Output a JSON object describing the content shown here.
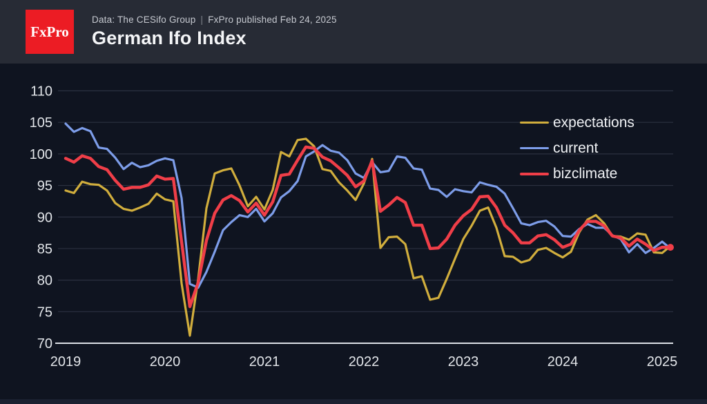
{
  "header": {
    "logo_text": "FxPro",
    "subtitle_left": "Data: The CESifo Group",
    "subtitle_separator": "|",
    "subtitle_right": "FxPro published Feb 24, 2025",
    "title": "German Ifo Index"
  },
  "colors": {
    "background": "#0f1420",
    "header_bg": "#272b35",
    "logo_bg": "#ec1c24",
    "grid": "#2b3140",
    "axis_line": "#dde0e6",
    "tick_text": "#e3e6ea",
    "expectations": "#d1ae3d",
    "current": "#7d9de9",
    "bizclimate": "#f03e48"
  },
  "chart_data": {
    "type": "line",
    "title": "German Ifo Index",
    "x_unit": "month",
    "x_start": "2019-01",
    "x_end": "2025-02",
    "n_points": 74,
    "x_tick_labels": [
      "2019",
      "2020",
      "2021",
      "2022",
      "2023",
      "2024",
      "2025"
    ],
    "ylim": [
      70,
      110
    ],
    "y_ticks": [
      70,
      75,
      80,
      85,
      90,
      95,
      100,
      105,
      110
    ],
    "grid": "horizontal",
    "legend_position": "top-right",
    "series": [
      {
        "name": "expectations",
        "color": "#d1ae3d",
        "stroke_width": 3.2,
        "end_dot": false,
        "values": [
          94.2,
          93.8,
          95.6,
          95.2,
          95.1,
          94.2,
          92.2,
          91.3,
          91.0,
          91.5,
          92.1,
          93.7,
          92.8,
          92.5,
          79.5,
          71.2,
          80.2,
          91.4,
          96.9,
          97.4,
          97.7,
          95.0,
          91.7,
          93.2,
          91.2,
          94.3,
          100.3,
          99.6,
          102.2,
          102.4,
          101.2,
          97.6,
          97.3,
          95.5,
          94.2,
          92.7,
          95.3,
          99.2,
          85.1,
          86.8,
          86.9,
          85.7,
          80.3,
          80.6,
          76.9,
          77.2,
          80.2,
          83.4,
          86.5,
          88.6,
          91.0,
          91.5,
          88.3,
          83.8,
          83.7,
          82.8,
          83.2,
          84.8,
          85.1,
          84.3,
          83.6,
          84.5,
          87.6,
          89.6,
          90.3,
          89.0,
          87.0,
          86.9,
          86.4,
          87.4,
          87.2,
          84.4,
          84.3,
          85.4
        ]
      },
      {
        "name": "current",
        "color": "#7d9de9",
        "stroke_width": 3.2,
        "end_dot": false,
        "values": [
          104.8,
          103.5,
          104.1,
          103.6,
          101.0,
          100.8,
          99.4,
          97.6,
          98.6,
          97.9,
          98.2,
          98.9,
          99.3,
          99.0,
          93.0,
          79.4,
          78.8,
          81.3,
          84.5,
          87.9,
          89.2,
          90.3,
          90.0,
          91.3,
          89.3,
          90.6,
          93.1,
          94.1,
          95.7,
          99.6,
          100.4,
          101.4,
          100.5,
          100.2,
          99.0,
          96.9,
          96.2,
          98.7,
          97.1,
          97.3,
          99.6,
          99.4,
          97.7,
          97.5,
          94.5,
          94.3,
          93.2,
          94.4,
          94.1,
          93.9,
          95.5,
          95.1,
          94.8,
          93.7,
          91.4,
          89.0,
          88.7,
          89.2,
          89.4,
          88.5,
          87.0,
          86.9,
          88.1,
          88.9,
          88.3,
          88.3,
          87.1,
          86.5,
          84.4,
          85.7,
          84.3,
          85.1,
          86.1,
          85.0
        ]
      },
      {
        "name": "bizclimate",
        "color": "#f03e48",
        "stroke_width": 4.4,
        "end_dot": true,
        "values": [
          99.3,
          98.7,
          99.7,
          99.3,
          98.0,
          97.5,
          95.8,
          94.4,
          94.7,
          94.7,
          95.1,
          96.5,
          96.0,
          96.1,
          86.1,
          75.8,
          79.6,
          86.3,
          90.6,
          92.7,
          93.4,
          92.6,
          90.8,
          92.2,
          90.3,
          92.4,
          96.6,
          96.8,
          99.0,
          101.1,
          100.9,
          99.5,
          98.9,
          97.8,
          96.6,
          94.8,
          95.7,
          98.9,
          90.9,
          91.9,
          93.1,
          92.3,
          88.7,
          88.7,
          85.0,
          85.1,
          86.5,
          88.7,
          90.2,
          91.2,
          93.2,
          93.3,
          91.5,
          88.7,
          87.5,
          85.9,
          85.9,
          87.0,
          87.2,
          86.4,
          85.2,
          85.7,
          87.9,
          89.3,
          89.3,
          88.6,
          87.0,
          86.7,
          85.4,
          86.5,
          85.7,
          84.7,
          85.2,
          85.2
        ]
      }
    ]
  }
}
